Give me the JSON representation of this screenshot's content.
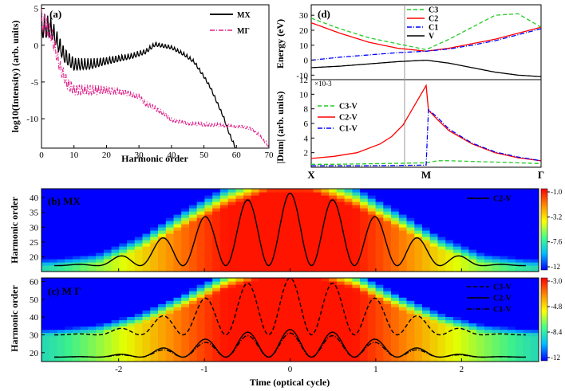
{
  "chart_data": [
    {
      "type": "line",
      "panel_label": "(a)",
      "xlabel": "Harmonic order",
      "ylabel": "log10(Intensity) (arb. units)",
      "xlim": [
        0,
        70
      ],
      "ylim": [
        -14,
        5.5
      ],
      "xticks": [
        "0",
        "10",
        "20",
        "30",
        "40",
        "50",
        "60",
        "70"
      ],
      "yticks": [
        "5",
        "0",
        "-5",
        "-10"
      ],
      "legend_position": "top-right",
      "series": [
        {
          "name": "MX",
          "color": "#000000",
          "style": "solid",
          "x": [
            0,
            3,
            7,
            10,
            15,
            20,
            25,
            28,
            32,
            35,
            40,
            44,
            47,
            50,
            52,
            54,
            56,
            58,
            60
          ],
          "y": [
            4.5,
            4.0,
            0.0,
            -1.5,
            -1.8,
            -1.5,
            -1.2,
            -1.0,
            -0.5,
            0.5,
            0.0,
            -1.0,
            -2.0,
            -4.0,
            -5.5,
            -7.5,
            -9.5,
            -12.0,
            -14.0
          ]
        },
        {
          "name": "MΓ",
          "color": "#e0218a",
          "style": "dash-dot",
          "x": [
            0,
            3,
            6,
            8,
            10,
            15,
            20,
            25,
            30,
            32,
            35,
            38,
            40,
            45,
            50,
            55,
            60,
            62,
            65,
            67,
            68,
            70
          ],
          "y": [
            5.0,
            3.0,
            -2.0,
            -4.0,
            -5.0,
            -5.3,
            -5.5,
            -5.8,
            -6.5,
            -7.5,
            -8.2,
            -9.0,
            -9.8,
            -10.3,
            -10.5,
            -10.6,
            -10.8,
            -10.8,
            -11.2,
            -12.0,
            -12.5,
            -13.5
          ]
        }
      ]
    },
    {
      "type": "line",
      "panel_label": "(d)",
      "ylabel_top": "Energy (eV)",
      "ylabel_bottom": "|Dnm| (arb. units)",
      "bottom_multiplier": "×10-3",
      "xtick_labels": [
        "X",
        "M",
        "Γ"
      ],
      "top_ylim": [
        -13,
        37
      ],
      "top_yticks": [
        "30",
        "20",
        "10",
        "0",
        "-10"
      ],
      "bottom_ylim": [
        0,
        12
      ],
      "bottom_yticks": [
        "12",
        "10",
        "8",
        "6",
        "4",
        "2"
      ],
      "top_series": [
        {
          "name": "C3",
          "color": "#22cc22",
          "style": "dashed",
          "k": [
            0,
            0.125,
            0.25,
            0.375,
            0.5,
            0.6,
            0.7,
            0.8,
            0.9,
            1.0
          ],
          "y": [
            28,
            21,
            15,
            11,
            7,
            14,
            22,
            30,
            31,
            22
          ]
        },
        {
          "name": "C2",
          "color": "#ff0000",
          "style": "solid",
          "k": [
            0,
            0.125,
            0.25,
            0.375,
            0.5,
            0.6,
            0.7,
            0.8,
            0.9,
            1.0
          ],
          "y": [
            25,
            18,
            12,
            8,
            6,
            8,
            11,
            14,
            18,
            22
          ]
        },
        {
          "name": "C1",
          "color": "#0000ff",
          "style": "dash-dot",
          "k": [
            0,
            0.125,
            0.25,
            0.375,
            0.5,
            0.6,
            0.7,
            0.8,
            0.9,
            1.0
          ],
          "y": [
            0,
            2,
            3.5,
            5,
            6,
            7.5,
            10,
            13,
            17,
            21
          ]
        },
        {
          "name": "V",
          "color": "#000000",
          "style": "solid",
          "k": [
            0,
            0.125,
            0.25,
            0.375,
            0.5,
            0.6,
            0.7,
            0.8,
            0.9,
            1.0
          ],
          "y": [
            -5,
            -4,
            -2.5,
            -1,
            0,
            -2,
            -5,
            -8,
            -10,
            -11
          ]
        }
      ],
      "bottom_series": [
        {
          "name": "C3-V",
          "color": "#22cc22",
          "style": "dashed",
          "k": [
            0,
            0.1,
            0.2,
            0.3,
            0.4,
            0.5,
            0.55,
            0.6,
            0.7,
            0.8,
            0.9,
            1.0
          ],
          "y": [
            0.4,
            0.4,
            0.45,
            0.5,
            0.55,
            0.6,
            0.9,
            0.9,
            0.8,
            0.7,
            0.6,
            0.5
          ]
        },
        {
          "name": "C2-V",
          "color": "#ff0000",
          "style": "solid",
          "k": [
            0,
            0.1,
            0.2,
            0.3,
            0.35,
            0.4,
            0.45,
            0.5,
            0.51,
            0.55,
            0.6,
            0.7,
            0.8,
            0.9,
            1.0
          ],
          "y": [
            1.2,
            1.5,
            2.0,
            3.2,
            4.2,
            5.8,
            8.5,
            11.2,
            7.8,
            6.5,
            5.0,
            3.2,
            2.0,
            1.3,
            0.9
          ]
        },
        {
          "name": "C1-V",
          "color": "#0000ff",
          "style": "dash-dot",
          "k": [
            0,
            0.2,
            0.4,
            0.5,
            0.51,
            0.55,
            0.6,
            0.7,
            0.8,
            0.9,
            1.0
          ],
          "y": [
            0.2,
            0.2,
            0.25,
            0.3,
            7.9,
            6.8,
            5.2,
            3.3,
            2.1,
            1.4,
            0.9
          ]
        }
      ]
    },
    {
      "type": "heatmap",
      "panel_label": "(b) MX",
      "ylabel": "Harmonic order",
      "xlim": [
        -2.9,
        2.9
      ],
      "ylim": [
        15,
        43
      ],
      "yticks": [
        "40",
        "35",
        "30",
        "25",
        "20"
      ],
      "colorbar": [
        "-1.0",
        "-3.2",
        "-7.6",
        "-12"
      ],
      "series": [
        {
          "name": "C2-V",
          "color": "#000000",
          "style": "solid",
          "x": [
            -2.75,
            -2.25,
            -1.75,
            -1.25,
            -0.75,
            -0.25,
            0.25,
            0.75,
            1.25,
            1.75,
            2.25,
            2.75
          ],
          "y": [
            17.0,
            17.8,
            22.5,
            30.0,
            37.0,
            41.5,
            41.5,
            37.0,
            30.0,
            22.5,
            17.8,
            17.0
          ]
        }
      ]
    },
    {
      "type": "heatmap",
      "panel_label": "(c) M Γ",
      "xlabel": "Time (optical cycle)",
      "ylabel": "Harmonic order",
      "xlim": [
        -2.9,
        2.9
      ],
      "ylim": [
        15,
        62
      ],
      "xticks": [
        "-2",
        "-1",
        "0",
        "1",
        "2"
      ],
      "yticks": [
        "60",
        "50",
        "40",
        "30",
        "20"
      ],
      "colorbar": [
        "-3.0",
        "-4.8",
        "-8.4",
        "-12"
      ],
      "series": [
        {
          "name": "C3-V",
          "color": "#000000",
          "style": "dashed",
          "x": [
            -2.75,
            -2.25,
            -1.75,
            -1.25,
            -0.75,
            -0.25,
            0.25,
            0.75,
            1.25,
            1.75,
            2.25,
            2.75
          ],
          "y": [
            30,
            31,
            36,
            45,
            56,
            62,
            62,
            56,
            45,
            36,
            31,
            30
          ]
        },
        {
          "name": "C2-V",
          "color": "#000000",
          "style": "solid",
          "x": [
            -2.75,
            -2.25,
            -1.75,
            -1.25,
            -0.75,
            -0.25,
            0.25,
            0.75,
            1.25,
            1.75,
            2.25,
            2.75
          ],
          "y": [
            17.5,
            18,
            20,
            25,
            30,
            33,
            33,
            30,
            25,
            20,
            18,
            17.5
          ]
        },
        {
          "name": "C1-V",
          "color": "#000000",
          "style": "dash-dot",
          "x": [
            -2.75,
            -2.25,
            -1.75,
            -1.25,
            -0.75,
            -0.25,
            0.25,
            0.75,
            1.25,
            1.75,
            2.25,
            2.75
          ],
          "y": [
            17.5,
            17.8,
            19.5,
            23.5,
            28,
            31,
            31,
            28,
            23.5,
            19.5,
            17.8,
            17.5
          ]
        }
      ]
    }
  ]
}
